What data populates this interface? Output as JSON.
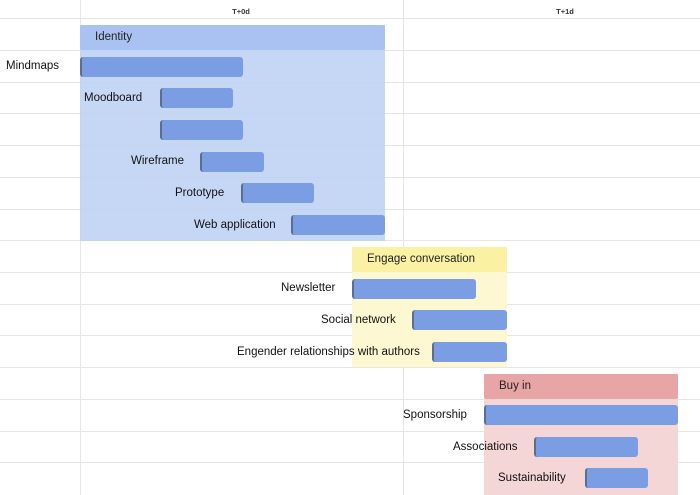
{
  "timeline": {
    "columns": [
      "T+0d",
      "T+1d"
    ]
  },
  "left_labels": [
    "Mindmaps"
  ],
  "groups": [
    {
      "name": "Identity",
      "color": "#bcd0f5",
      "header_color": "#a9c2f2",
      "tasks": [
        "",
        "Moodboard",
        "",
        "Wireframe",
        "Prototype",
        "Web application"
      ]
    },
    {
      "name": "Engage conversation",
      "color": "#fdf8d2",
      "header_color": "#fbf1a3",
      "tasks": [
        "Newsletter",
        "Social network",
        "Engender relationships with authors"
      ]
    },
    {
      "name": "Buy in",
      "color": "#f5d6d6",
      "header_color": "#e8a5a5",
      "tasks": [
        "Sponsorship",
        "Associations",
        "Sustainability"
      ]
    }
  ],
  "colors": {
    "bar": "#7b9de3",
    "bar_edge": "#5a6f8f",
    "grid": "#e6e6e6"
  }
}
